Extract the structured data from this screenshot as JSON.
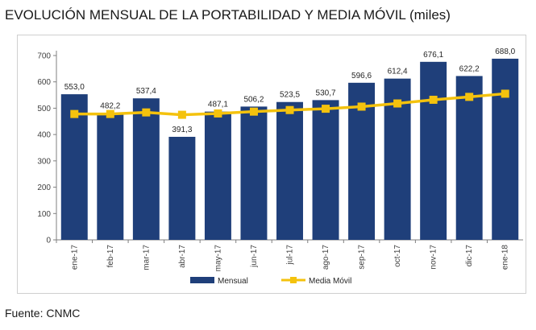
{
  "title": "EVOLUCIÓN MENSUAL DE LA PORTABILIDAD Y MEDIA MÓVIL (miles)",
  "source": "Fuente: CNMC",
  "colors": {
    "bar": "#1F3F7A",
    "line": "#F4C20D",
    "grid": "#d9d9d9",
    "axis": "#7f7f7f"
  },
  "chart_data": {
    "type": "bar",
    "categories": [
      "ene-17",
      "feb-17",
      "mar-17",
      "abr-17",
      "may-17",
      "jun-17",
      "jul-17",
      "ago-17",
      "sep-17",
      "oct-17",
      "nov-17",
      "dic-17",
      "ene-18"
    ],
    "series": [
      {
        "name": "Mensual",
        "type": "bar",
        "values": [
          553.0,
          482.2,
          537.4,
          391.3,
          487.1,
          506.2,
          523.5,
          530.7,
          596.6,
          612.4,
          676.1,
          622.2,
          688.0
        ],
        "labels": [
          "553,0",
          "482,2",
          "537,4",
          "391,3",
          "487,1",
          "506,2",
          "523,5",
          "530,7",
          "596,6",
          "612,4",
          "676,1",
          "622,2",
          "688,0"
        ]
      },
      {
        "name": "Media Móvil",
        "type": "line",
        "values": [
          478,
          478,
          484,
          475,
          480,
          487,
          493,
          498,
          506,
          518,
          532,
          543,
          555
        ]
      }
    ],
    "ylim": [
      0,
      700
    ],
    "yticks": [
      0,
      100,
      200,
      300,
      400,
      500,
      600,
      700
    ],
    "legend_position": "bottom",
    "grid": false
  }
}
